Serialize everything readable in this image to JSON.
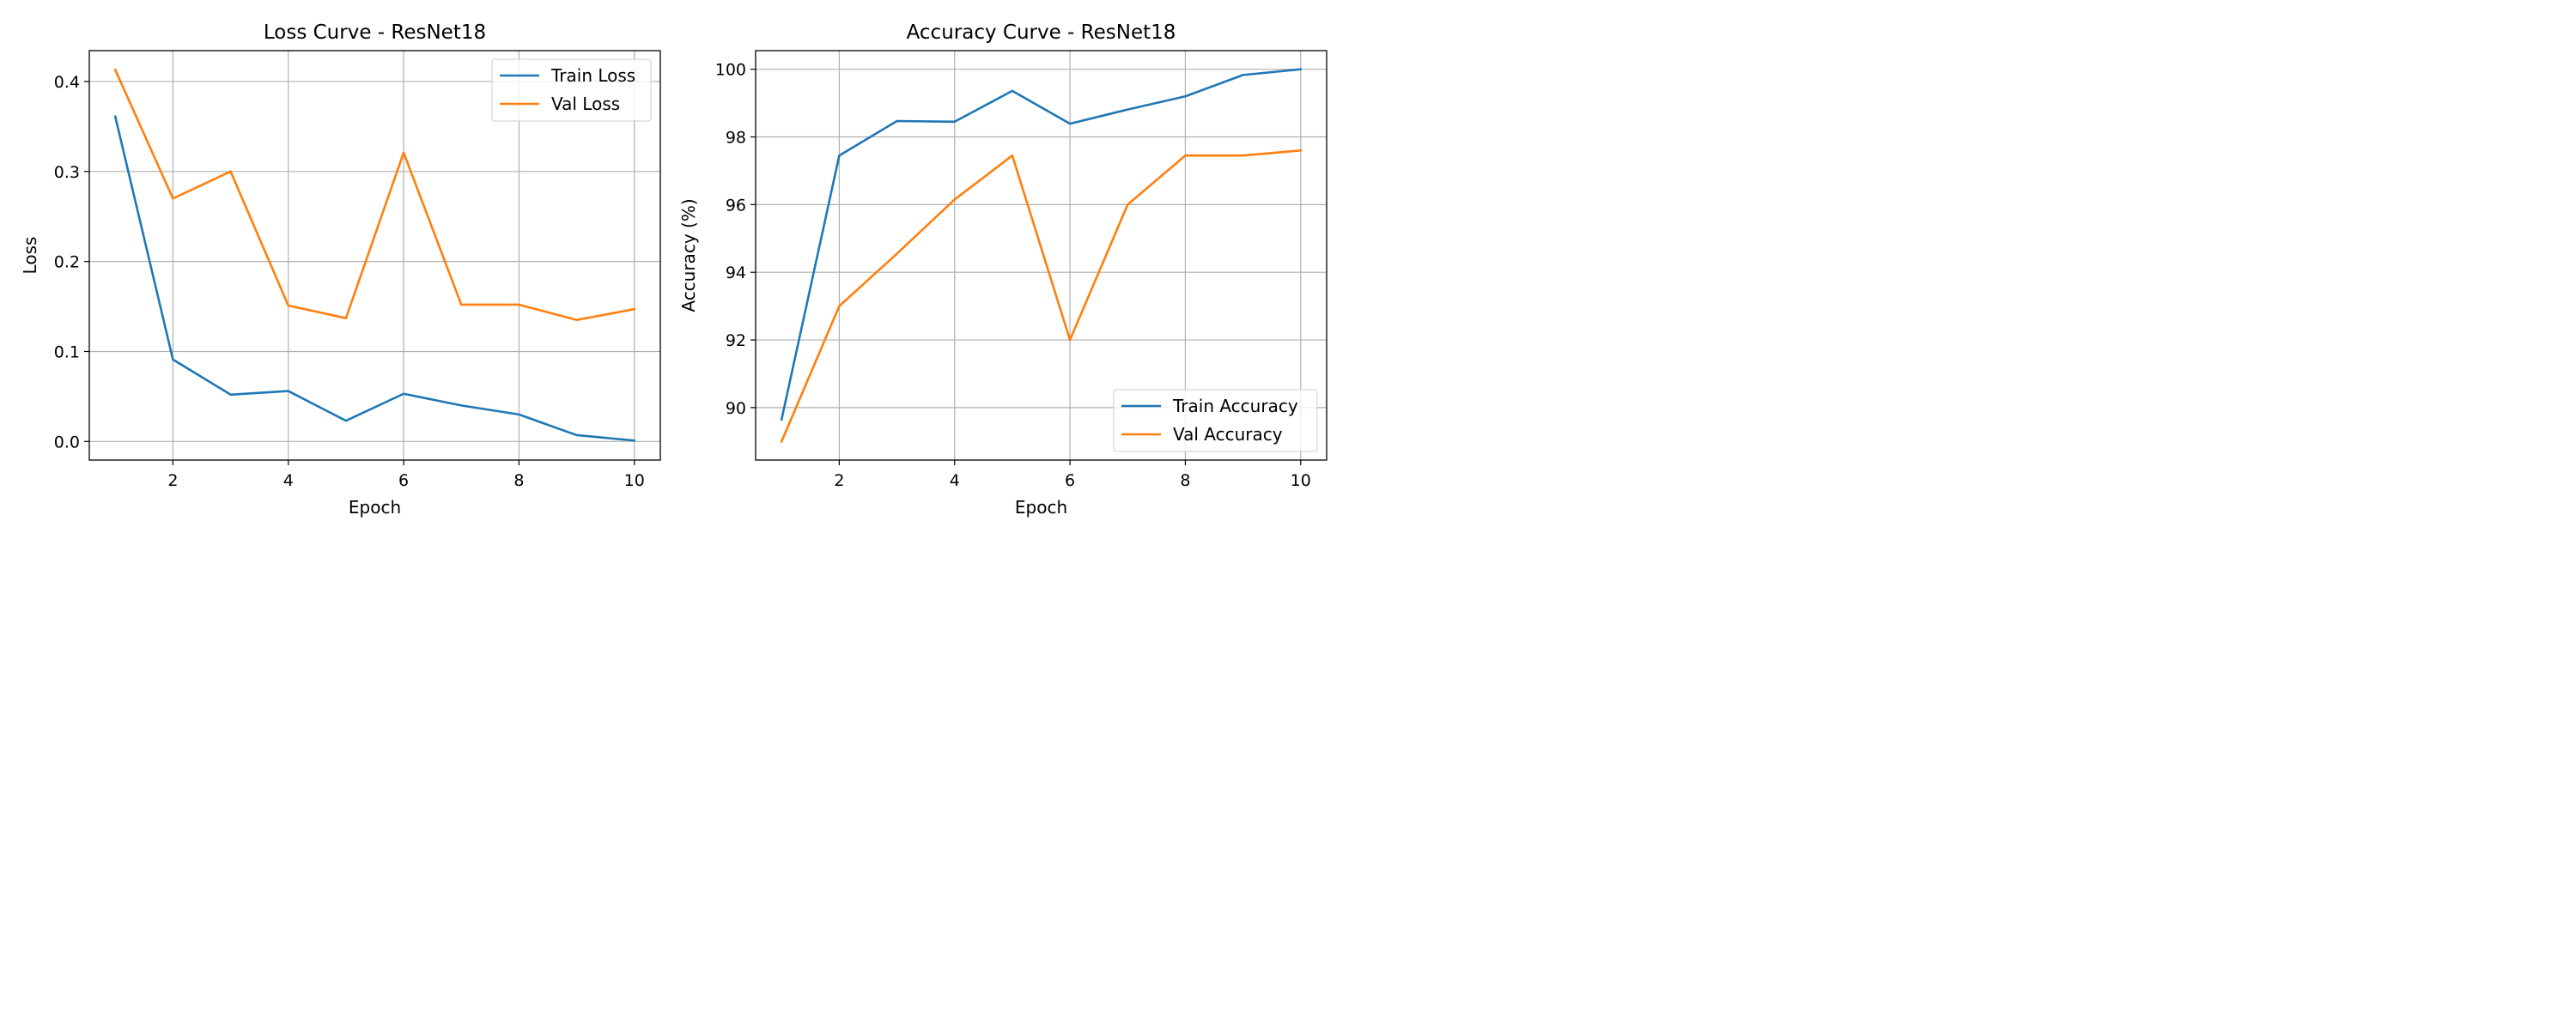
{
  "colors": {
    "train": "#1f77b4",
    "val": "#ff7f0e",
    "grid": "#b0b0b0",
    "axes": "#000000"
  },
  "chart_data": [
    {
      "type": "line",
      "title": "Loss Curve - ResNet18",
      "xlabel": "Epoch",
      "ylabel": "Loss",
      "xlim": [
        0.55,
        10.45
      ],
      "ylim": [
        -0.0207,
        0.4343
      ],
      "xticks": [
        2,
        4,
        6,
        8,
        10
      ],
      "xtick_labels": [
        "2",
        "4",
        "6",
        "8",
        "10"
      ],
      "yticks": [
        0.0,
        0.1,
        0.2,
        0.3,
        0.4
      ],
      "ytick_labels": [
        "0.0",
        "0.1",
        "0.2",
        "0.3",
        "0.4"
      ],
      "grid": true,
      "legend_position": "upper right",
      "x": [
        1,
        2,
        3,
        4,
        5,
        6,
        7,
        8,
        9,
        10
      ],
      "series": [
        {
          "name": "Train Loss",
          "values": [
            0.361,
            0.091,
            0.052,
            0.056,
            0.023,
            0.053,
            0.04,
            0.03,
            0.007,
            0.001
          ]
        },
        {
          "name": "Val Loss",
          "values": [
            0.413,
            0.27,
            0.3,
            0.151,
            0.137,
            0.321,
            0.152,
            0.152,
            0.135,
            0.147
          ]
        }
      ]
    },
    {
      "type": "line",
      "title": "Accuracy Curve - ResNet18",
      "xlabel": "Epoch",
      "ylabel": "Accuracy (%)",
      "xlim": [
        0.55,
        10.45
      ],
      "ylim": [
        88.45,
        100.55
      ],
      "xticks": [
        2,
        4,
        6,
        8,
        10
      ],
      "xtick_labels": [
        "2",
        "4",
        "6",
        "8",
        "10"
      ],
      "yticks": [
        90,
        92,
        94,
        96,
        98,
        100
      ],
      "ytick_labels": [
        "90",
        "92",
        "94",
        "96",
        "98",
        "100"
      ],
      "grid": true,
      "legend_position": "lower right",
      "x": [
        1,
        2,
        3,
        4,
        5,
        6,
        7,
        8,
        9,
        10
      ],
      "series": [
        {
          "name": "Train Accuracy",
          "values": [
            89.65,
            97.45,
            98.47,
            98.45,
            99.36,
            98.39,
            98.81,
            99.2,
            99.83,
            100.0
          ]
        },
        {
          "name": "Val Accuracy",
          "values": [
            89.0,
            93.0,
            94.55,
            96.15,
            97.45,
            92.0,
            96.0,
            97.45,
            97.45,
            97.6
          ]
        }
      ]
    }
  ]
}
